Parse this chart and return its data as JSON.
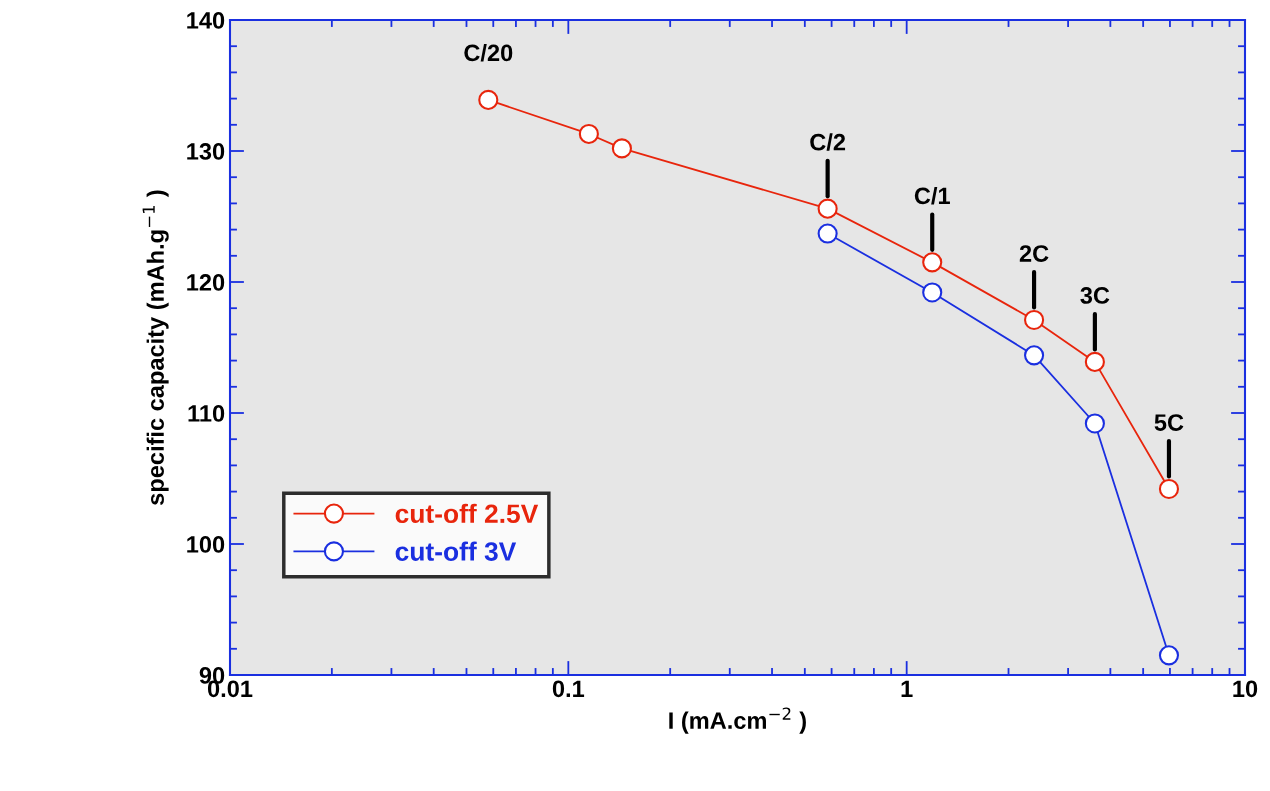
{
  "chart_data": {
    "type": "line",
    "xlabel": "I (mA.cm$^{−2}$ )",
    "ylabel": "specific capacity (mAh.g$^{−1}$ )",
    "log": "x",
    "xlim": [
      0.01,
      10
    ],
    "xticks": [
      0.01,
      0.1,
      1,
      10
    ],
    "ylim": [
      90,
      140
    ],
    "yticks": [
      90,
      100,
      110,
      120,
      130,
      140
    ],
    "marker": "circle",
    "legend": "bottom left",
    "grid": false,
    "series": [
      {
        "name": "cut-off 2.5V",
        "color": "#e8250c",
        "x": [
          0.058,
          0.115,
          0.144,
          0.584,
          1.19,
          2.38,
          3.6,
          5.96
        ],
        "values": [
          133.9,
          131.3,
          130.2,
          125.6,
          121.5,
          117.1,
          113.9,
          104.2
        ]
      },
      {
        "name": "cut-off 3V",
        "color": "#1a2fe0",
        "x": [
          0.584,
          1.19,
          2.38,
          3.6,
          5.96
        ],
        "values": [
          123.7,
          119.2,
          114.4,
          109.2,
          91.5
        ]
      }
    ],
    "annotations": [
      {
        "text": "C/20",
        "x": 0.058,
        "y": 133.9
      },
      {
        "text": "C/2",
        "x": 0.584,
        "y": 125.6
      },
      {
        "text": "C/1",
        "x": 1.19,
        "y": 121.5
      },
      {
        "text": "2C",
        "x": 2.38,
        "y": 117.1
      },
      {
        "text": "3C",
        "x": 3.6,
        "y": 113.9
      },
      {
        "text": "5C",
        "x": 5.96,
        "y": 104.2
      }
    ]
  }
}
